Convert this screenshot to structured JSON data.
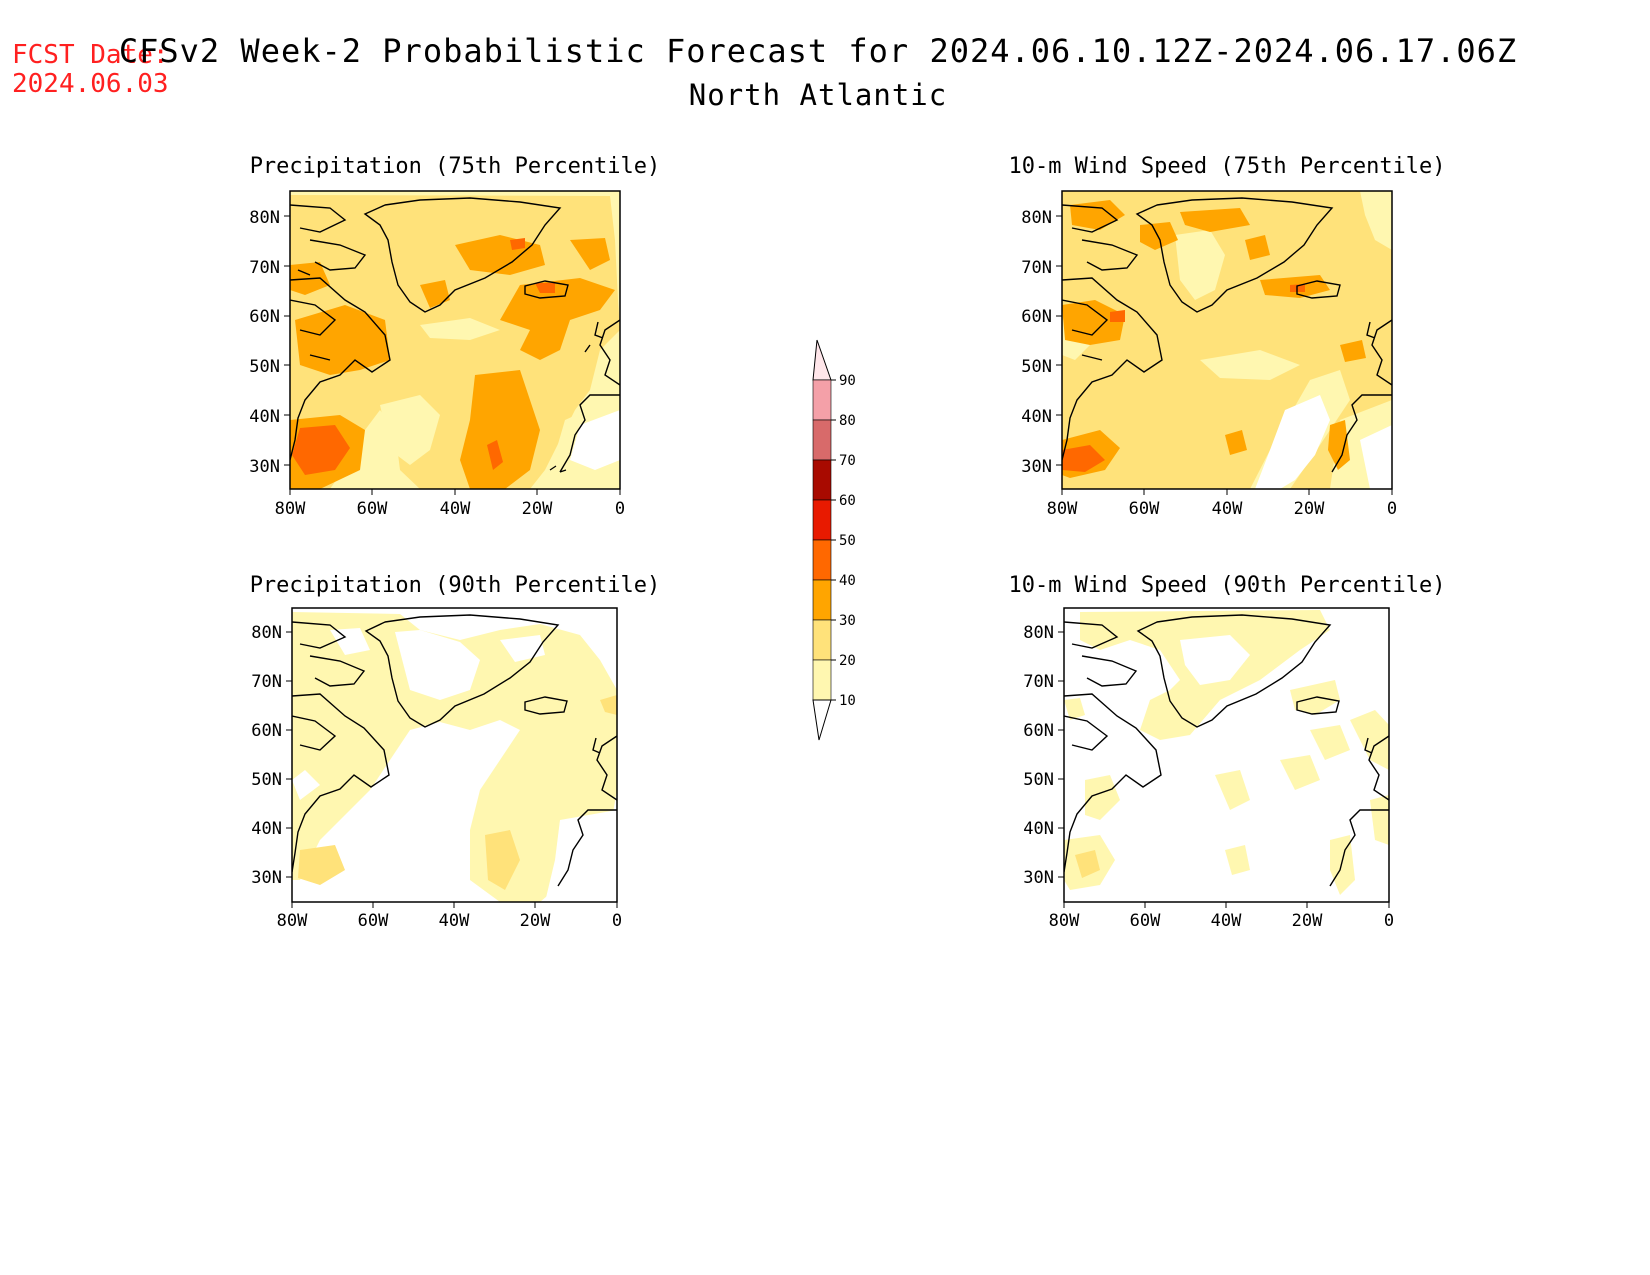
{
  "header": {
    "fcst_label": "FCST Date:",
    "fcst_date": "2024.06.03",
    "title": "CFSv2 Week-2 Probabilistic Forecast for 2024.06.10.12Z-2024.06.17.06Z",
    "region": "North Atlantic"
  },
  "colors": {
    "fcst_text": "#ff2020",
    "c10": "#fff7b0",
    "c20": "#ffe27a",
    "c30": "#ffa500",
    "c40": "#ff6800",
    "c50": "#e81a00",
    "c60": "#a80a00",
    "c70": "#d86a6a",
    "c80": "#f4a0a8",
    "c90": "#ffe6ea"
  },
  "axes": {
    "lat_ticks": [
      "80N",
      "70N",
      "60N",
      "50N",
      "40N",
      "30N"
    ],
    "lon_ticks": [
      "80W",
      "60W",
      "40W",
      "20W",
      "0"
    ]
  },
  "panels": [
    {
      "id": "precip-75",
      "title": "Precipitation (75th Percentile)"
    },
    {
      "id": "wind-75",
      "title": "10-m Wind Speed (75th Percentile)"
    },
    {
      "id": "precip-90",
      "title": "Precipitation (90th Percentile)"
    },
    {
      "id": "wind-90",
      "title": "10-m Wind Speed (90th Percentile)"
    }
  ],
  "colorbar": {
    "levels": [
      "10",
      "20",
      "30",
      "40",
      "50",
      "60",
      "70",
      "80",
      "90"
    ]
  }
}
